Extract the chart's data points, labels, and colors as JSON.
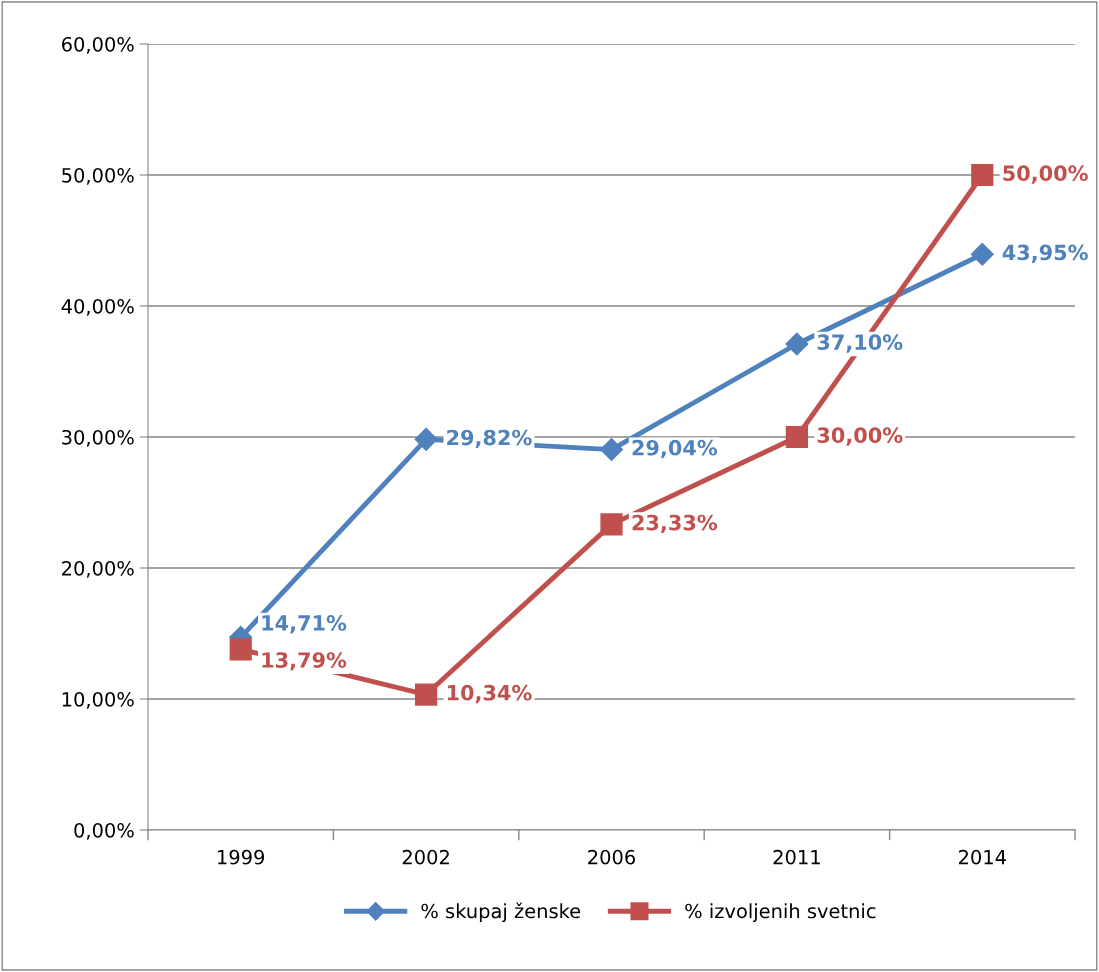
{
  "chart_data": {
    "type": "line",
    "categories": [
      "1999",
      "2002",
      "2006",
      "2011",
      "2014"
    ],
    "series": [
      {
        "name": "% skupaj ženske",
        "color": "#4f81bd",
        "marker": "diamond",
        "values": [
          14.71,
          29.82,
          29.04,
          37.1,
          43.95
        ],
        "value_labels": [
          "14,71%",
          "29,82%",
          "29,04%",
          "37,10%",
          "43,95%"
        ]
      },
      {
        "name": "% izvoljenih svetnic",
        "color": "#c0504d",
        "marker": "square",
        "values": [
          13.79,
          10.34,
          23.33,
          30.0,
          50.0
        ],
        "value_labels": [
          "13,79%",
          "10,34%",
          "23,33%",
          "30,00%",
          "50,00%"
        ]
      }
    ],
    "ylim": [
      0,
      60
    ],
    "yticks": [
      {
        "value": 0,
        "label": "0,00%"
      },
      {
        "value": 10,
        "label": "10,00%"
      },
      {
        "value": 20,
        "label": "20,00%"
      },
      {
        "value": 30,
        "label": "30,00%"
      },
      {
        "value": 40,
        "label": "40,00%"
      },
      {
        "value": 50,
        "label": "50,00%"
      },
      {
        "value": 60,
        "label": "60,00%"
      }
    ],
    "grid": "y",
    "legend": "bottom",
    "line_style": "solid"
  }
}
